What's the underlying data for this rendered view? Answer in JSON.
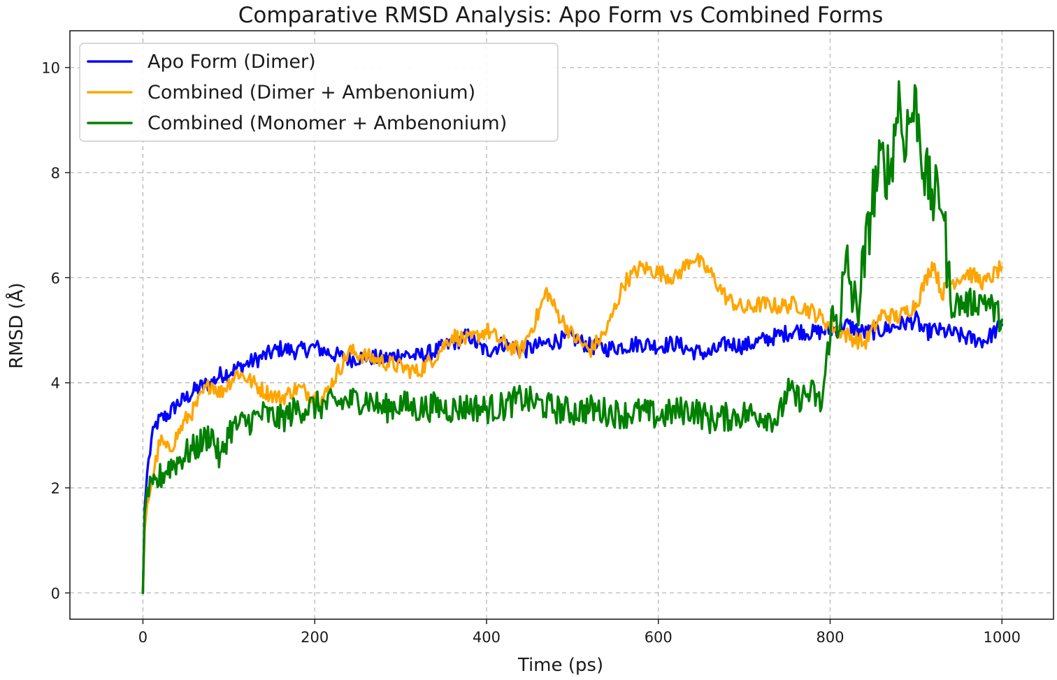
{
  "chart_data": {
    "type": "line",
    "title": "Comparative RMSD Analysis: Apo Form vs Combined Forms",
    "xlabel": "Time (ps)",
    "ylabel": "RMSD (Å)",
    "xlim": [
      -85,
      1060
    ],
    "ylim": [
      -0.5,
      10.7
    ],
    "xticks": [
      0,
      200,
      400,
      600,
      800,
      1000
    ],
    "yticks": [
      0,
      2,
      4,
      6,
      8,
      10
    ],
    "grid": true,
    "legend_position": "top-left",
    "series": [
      {
        "name": "Apo Form (Dimer)",
        "color": "#0000ff",
        "points": [
          [
            0,
            0
          ],
          [
            2,
            1.6
          ],
          [
            5,
            2.3
          ],
          [
            10,
            2.9
          ],
          [
            15,
            3.2
          ],
          [
            20,
            3.3
          ],
          [
            30,
            3.4
          ],
          [
            40,
            3.6
          ],
          [
            50,
            3.7
          ],
          [
            60,
            3.85
          ],
          [
            70,
            3.95
          ],
          [
            80,
            4.0
          ],
          [
            90,
            4.15
          ],
          [
            100,
            4.2
          ],
          [
            120,
            4.35
          ],
          [
            140,
            4.5
          ],
          [
            160,
            4.65
          ],
          [
            180,
            4.6
          ],
          [
            200,
            4.68
          ],
          [
            220,
            4.55
          ],
          [
            240,
            4.45
          ],
          [
            260,
            4.5
          ],
          [
            280,
            4.45
          ],
          [
            300,
            4.55
          ],
          [
            320,
            4.5
          ],
          [
            340,
            4.6
          ],
          [
            360,
            4.75
          ],
          [
            380,
            4.9
          ],
          [
            390,
            4.7
          ],
          [
            400,
            4.6
          ],
          [
            420,
            4.75
          ],
          [
            440,
            4.6
          ],
          [
            460,
            4.7
          ],
          [
            480,
            4.8
          ],
          [
            500,
            4.85
          ],
          [
            520,
            4.7
          ],
          [
            540,
            4.65
          ],
          [
            560,
            4.7
          ],
          [
            580,
            4.75
          ],
          [
            600,
            4.7
          ],
          [
            620,
            4.75
          ],
          [
            640,
            4.6
          ],
          [
            660,
            4.55
          ],
          [
            680,
            4.75
          ],
          [
            700,
            4.7
          ],
          [
            720,
            4.8
          ],
          [
            740,
            4.9
          ],
          [
            760,
            5.0
          ],
          [
            780,
            4.95
          ],
          [
            800,
            5.0
          ],
          [
            820,
            5.1
          ],
          [
            840,
            4.95
          ],
          [
            860,
            5.0
          ],
          [
            880,
            5.1
          ],
          [
            900,
            5.2
          ],
          [
            910,
            4.95
          ],
          [
            920,
            5.0
          ],
          [
            940,
            4.95
          ],
          [
            960,
            4.85
          ],
          [
            980,
            4.8
          ],
          [
            1000,
            5.1
          ]
        ]
      },
      {
        "name": "Combined (Dimer + Ambenonium)",
        "color": "#ffa500",
        "points": [
          [
            0,
            0
          ],
          [
            2,
            1.2
          ],
          [
            5,
            1.7
          ],
          [
            10,
            2.1
          ],
          [
            15,
            2.5
          ],
          [
            20,
            2.9
          ],
          [
            30,
            2.7
          ],
          [
            40,
            3.0
          ],
          [
            50,
            3.3
          ],
          [
            60,
            3.5
          ],
          [
            70,
            3.8
          ],
          [
            80,
            4.0
          ],
          [
            90,
            3.8
          ],
          [
            100,
            4.0
          ],
          [
            110,
            4.2
          ],
          [
            120,
            4.1
          ],
          [
            140,
            3.85
          ],
          [
            160,
            3.7
          ],
          [
            180,
            3.9
          ],
          [
            200,
            3.75
          ],
          [
            210,
            3.7
          ],
          [
            220,
            4.0
          ],
          [
            230,
            4.3
          ],
          [
            240,
            4.6
          ],
          [
            260,
            4.5
          ],
          [
            280,
            4.4
          ],
          [
            300,
            4.3
          ],
          [
            320,
            4.2
          ],
          [
            340,
            4.5
          ],
          [
            360,
            4.9
          ],
          [
            380,
            4.8
          ],
          [
            400,
            5.0
          ],
          [
            420,
            4.75
          ],
          [
            440,
            4.6
          ],
          [
            460,
            5.3
          ],
          [
            470,
            5.75
          ],
          [
            480,
            5.4
          ],
          [
            500,
            4.9
          ],
          [
            520,
            4.6
          ],
          [
            540,
            5.0
          ],
          [
            560,
            5.9
          ],
          [
            580,
            6.2
          ],
          [
            600,
            6.1
          ],
          [
            620,
            6.0
          ],
          [
            640,
            6.4
          ],
          [
            660,
            6.1
          ],
          [
            680,
            5.6
          ],
          [
            700,
            5.4
          ],
          [
            720,
            5.5
          ],
          [
            740,
            5.45
          ],
          [
            760,
            5.5
          ],
          [
            780,
            5.35
          ],
          [
            800,
            5.1
          ],
          [
            820,
            4.9
          ],
          [
            840,
            4.75
          ],
          [
            860,
            5.3
          ],
          [
            880,
            5.25
          ],
          [
            900,
            5.5
          ],
          [
            910,
            5.9
          ],
          [
            920,
            6.3
          ],
          [
            930,
            5.7
          ],
          [
            940,
            5.9
          ],
          [
            960,
            6.1
          ],
          [
            980,
            5.9
          ],
          [
            1000,
            6.2
          ]
        ]
      },
      {
        "name": "Combined (Monomer + Ambenonium)",
        "color": "#008000",
        "points": [
          [
            0,
            0
          ],
          [
            2,
            1.5
          ],
          [
            5,
            2.0
          ],
          [
            10,
            1.9
          ],
          [
            20,
            2.2
          ],
          [
            30,
            2.4
          ],
          [
            40,
            2.5
          ],
          [
            50,
            2.65
          ],
          [
            60,
            2.75
          ],
          [
            70,
            2.9
          ],
          [
            80,
            3.05
          ],
          [
            90,
            2.5
          ],
          [
            100,
            3.1
          ],
          [
            120,
            3.25
          ],
          [
            140,
            3.4
          ],
          [
            160,
            3.3
          ],
          [
            180,
            3.5
          ],
          [
            200,
            3.55
          ],
          [
            220,
            3.6
          ],
          [
            240,
            3.65
          ],
          [
            260,
            3.7
          ],
          [
            280,
            3.5
          ],
          [
            300,
            3.6
          ],
          [
            320,
            3.5
          ],
          [
            340,
            3.55
          ],
          [
            360,
            3.5
          ],
          [
            380,
            3.55
          ],
          [
            400,
            3.5
          ],
          [
            420,
            3.55
          ],
          [
            440,
            3.7
          ],
          [
            460,
            3.6
          ],
          [
            480,
            3.5
          ],
          [
            500,
            3.45
          ],
          [
            520,
            3.5
          ],
          [
            540,
            3.45
          ],
          [
            560,
            3.4
          ],
          [
            580,
            3.45
          ],
          [
            600,
            3.35
          ],
          [
            620,
            3.45
          ],
          [
            640,
            3.5
          ],
          [
            660,
            3.3
          ],
          [
            680,
            3.35
          ],
          [
            700,
            3.4
          ],
          [
            720,
            3.4
          ],
          [
            740,
            3.3
          ],
          [
            750,
            3.85
          ],
          [
            760,
            3.7
          ],
          [
            780,
            3.8
          ],
          [
            790,
            3.55
          ],
          [
            800,
            5.0
          ],
          [
            810,
            5.3
          ],
          [
            820,
            6.2
          ],
          [
            830,
            5.3
          ],
          [
            840,
            6.3
          ],
          [
            850,
            7.6
          ],
          [
            860,
            8.2
          ],
          [
            870,
            8.0
          ],
          [
            880,
            9.5
          ],
          [
            885,
            8.6
          ],
          [
            890,
            8.9
          ],
          [
            900,
            9.3
          ],
          [
            910,
            8.0
          ],
          [
            920,
            7.5
          ],
          [
            930,
            7.6
          ],
          [
            940,
            5.5
          ],
          [
            960,
            5.5
          ],
          [
            980,
            5.6
          ],
          [
            1000,
            5.2
          ]
        ]
      }
    ]
  }
}
